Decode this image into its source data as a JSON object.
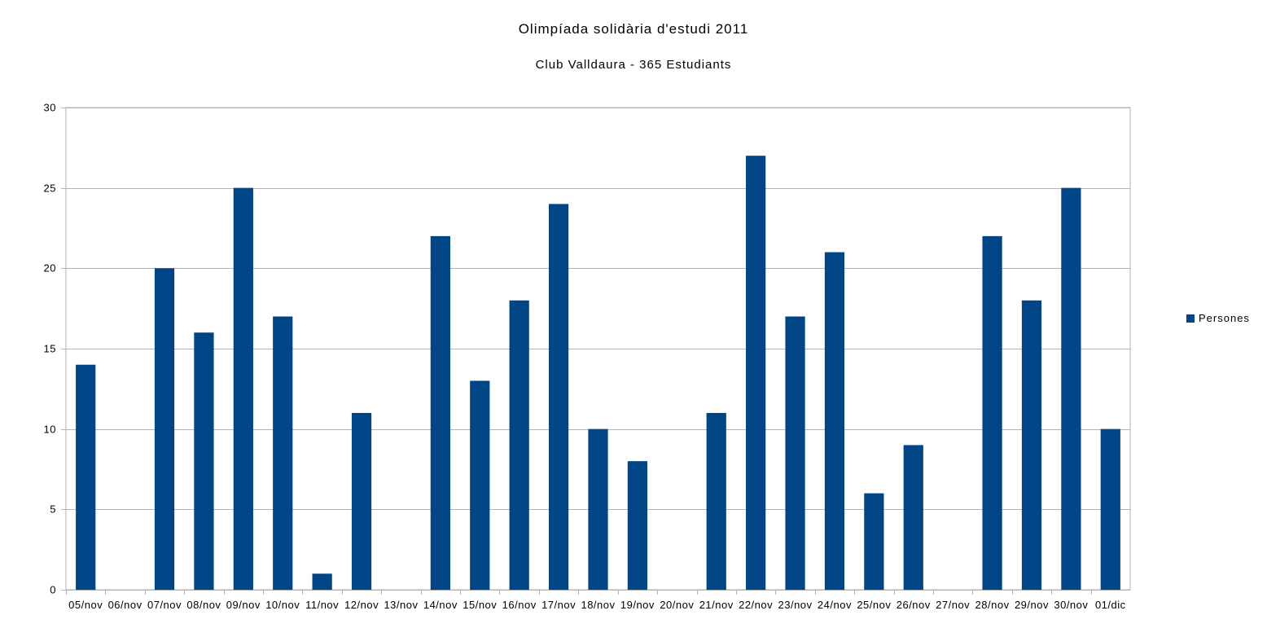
{
  "chart_data": {
    "type": "bar",
    "title": "Olimpíada solidària d'estudi 2011",
    "subtitle": "Club Valldaura - 365 Estudiants",
    "xlabel": "",
    "ylabel": "",
    "ylim": [
      0,
      30
    ],
    "yticks": [
      0,
      5,
      10,
      15,
      20,
      25,
      30
    ],
    "grid": true,
    "legend_position": "right",
    "categories": [
      "05/nov",
      "06/nov",
      "07/nov",
      "08/nov",
      "09/nov",
      "10/nov",
      "11/nov",
      "12/nov",
      "13/nov",
      "14/nov",
      "15/nov",
      "16/nov",
      "17/nov",
      "18/nov",
      "19/nov",
      "20/nov",
      "21/nov",
      "22/nov",
      "23/nov",
      "24/nov",
      "25/nov",
      "26/nov",
      "27/nov",
      "28/nov",
      "29/nov",
      "30/nov",
      "01/dic"
    ],
    "series": [
      {
        "name": "Persones",
        "color": "#004586",
        "values": [
          14,
          0,
          20,
          16,
          25,
          17,
          1,
          11,
          0,
          22,
          13,
          18,
          24,
          10,
          8,
          0,
          11,
          27,
          17,
          21,
          6,
          9,
          0,
          22,
          18,
          25,
          10
        ]
      }
    ]
  },
  "colors": {
    "bar": "#004586",
    "grid": "#b3b3b3",
    "axis": "#b3b3b3"
  }
}
